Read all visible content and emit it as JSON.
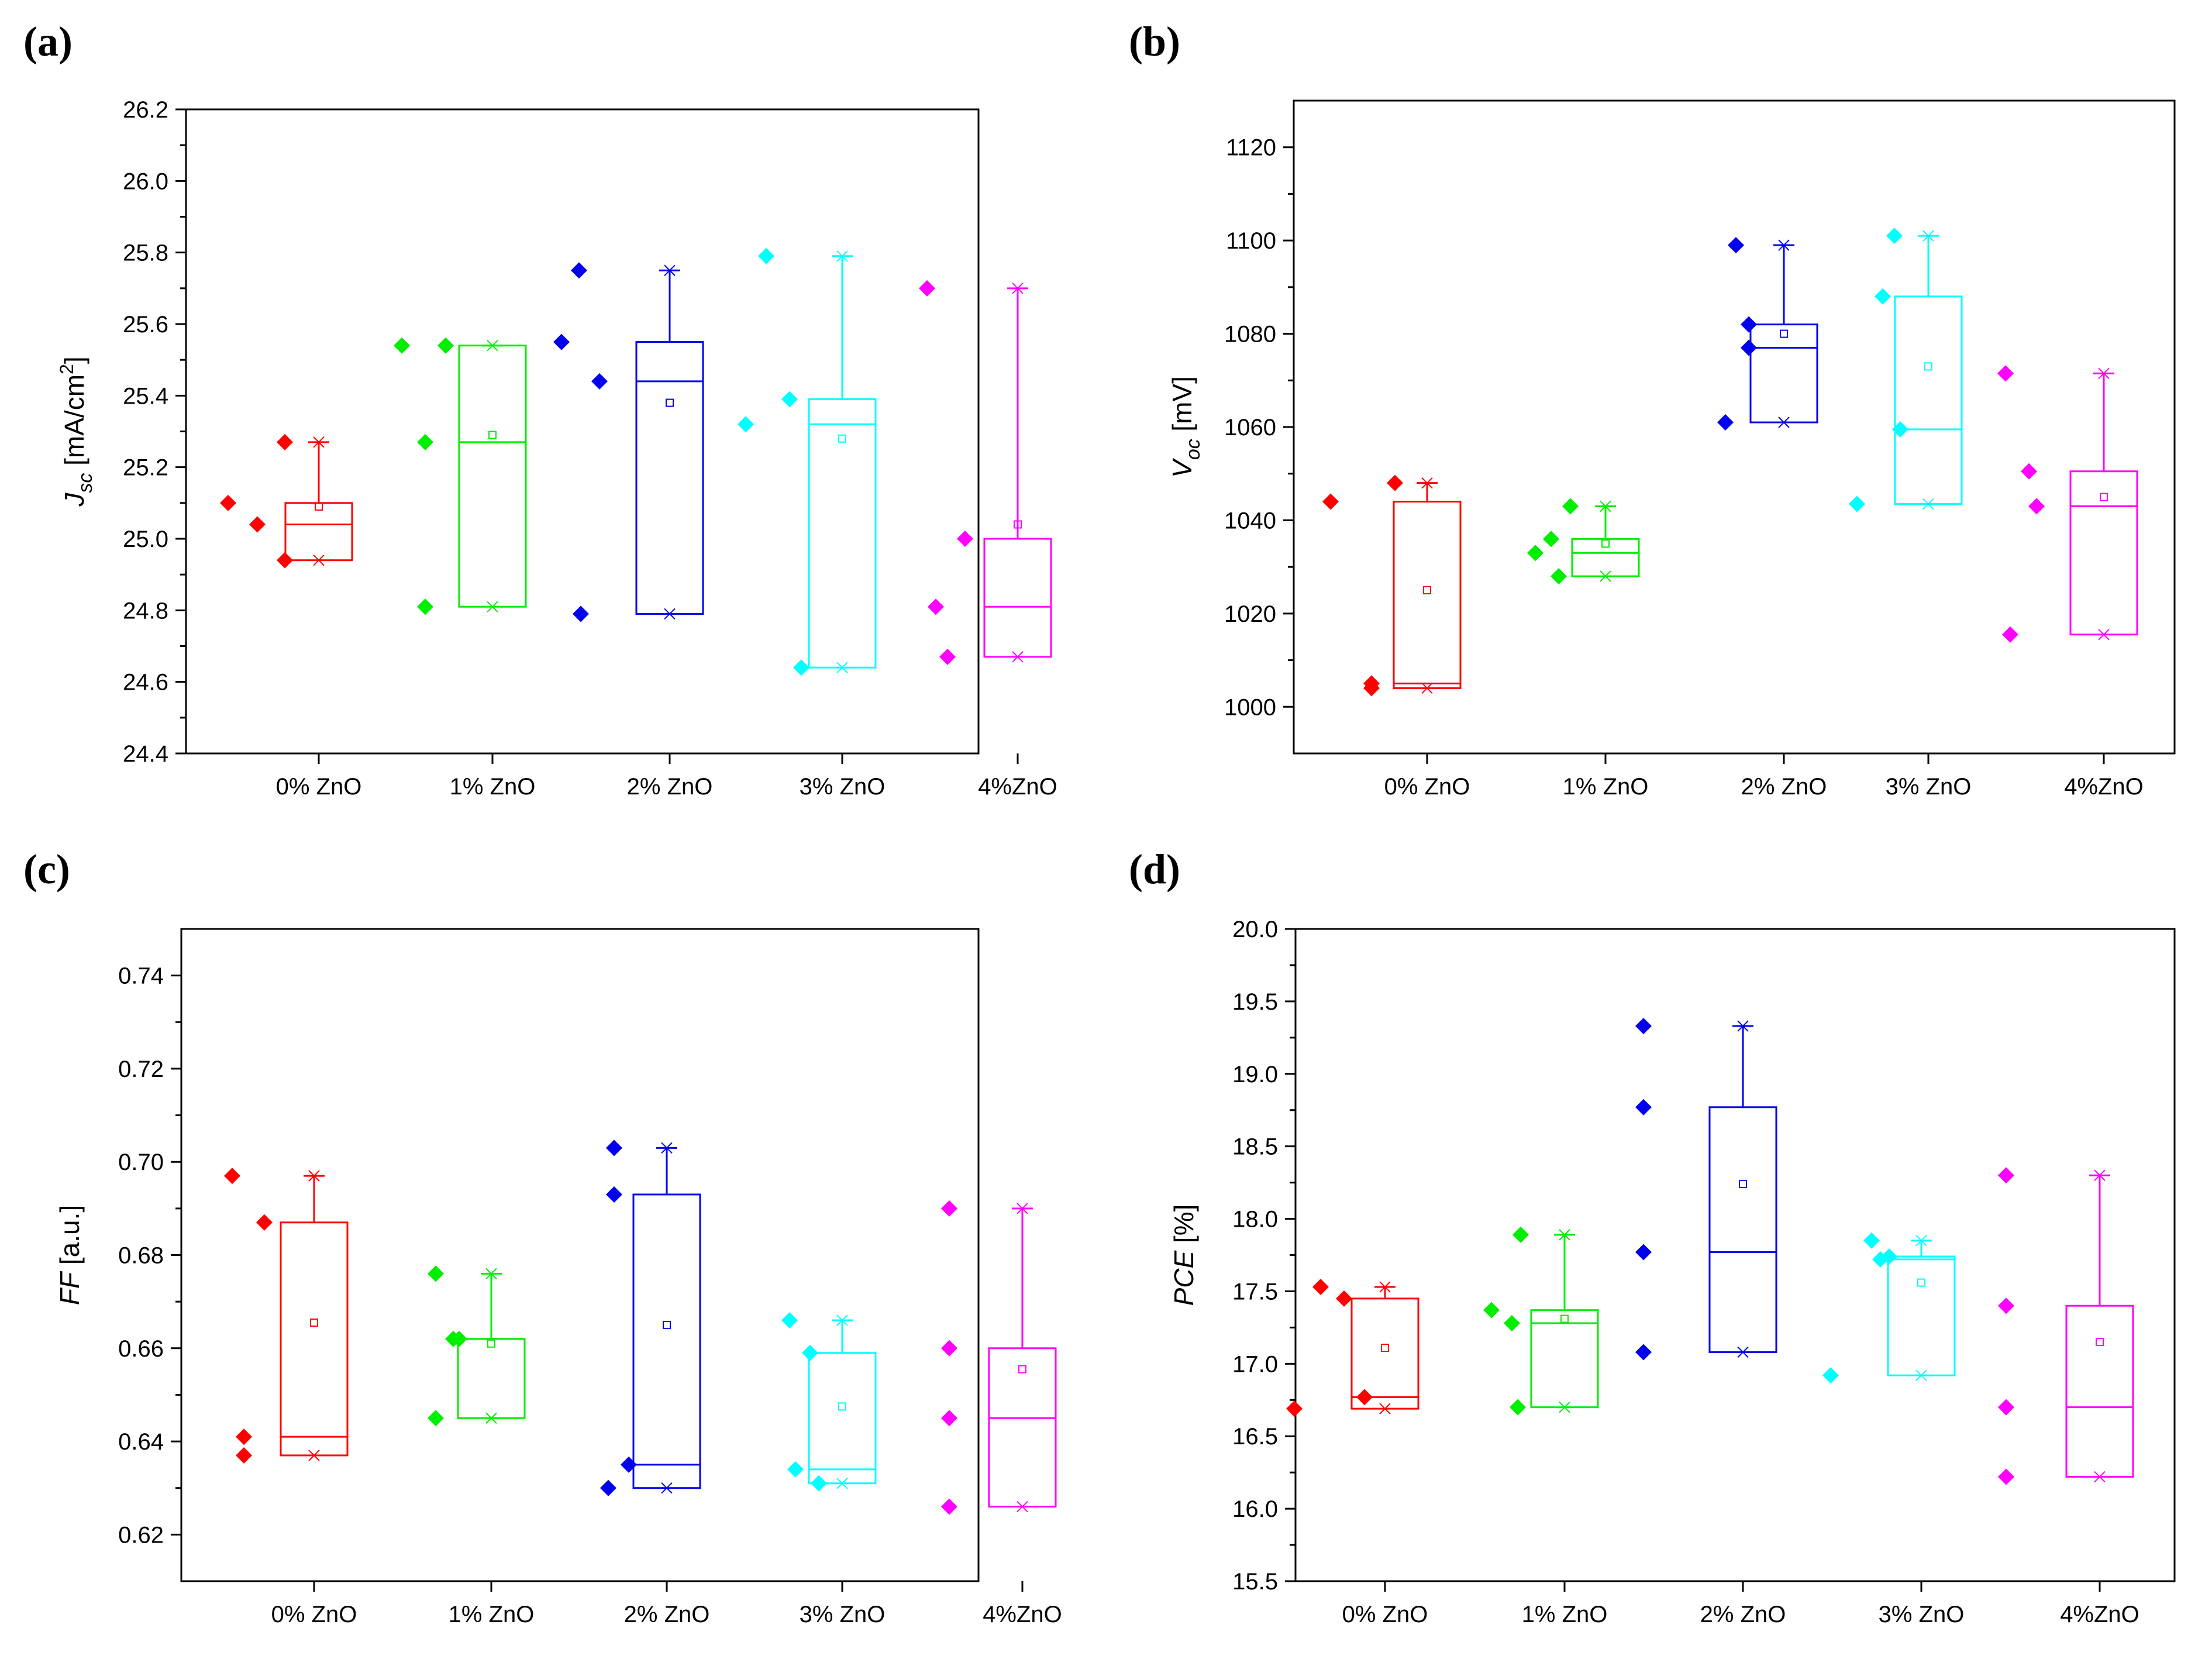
{
  "chart_data": [
    {
      "panel": "(a)",
      "type": "box",
      "ylabel_main": "J",
      "ylabel_sub": "sc",
      "ylabel_unit": "[mA/cm",
      "ylabel_sup": "2",
      "ylabel_close": "]",
      "ylim": [
        24.4,
        26.2
      ],
      "yticks": [
        "24.4",
        "24.6",
        "24.8",
        "25.0",
        "25.2",
        "25.4",
        "25.6",
        "25.8",
        "26.0",
        "26.2"
      ],
      "categories": [
        "0% ZnO",
        "1% ZnO",
        "2% ZnO",
        "3% ZnO",
        "4%ZnO"
      ],
      "groups": [
        {
          "points": [
            25.1,
            25.27,
            25.04,
            24.94
          ],
          "q1": 24.94,
          "median": 25.04,
          "q3": 25.1,
          "min": 24.94,
          "max": 25.27,
          "mean": 25.09
        },
        {
          "points": [
            25.54,
            25.54,
            25.27,
            24.81
          ],
          "q1": 24.81,
          "median": 25.27,
          "q3": 25.54,
          "min": 24.81,
          "max": 25.54,
          "mean": 25.29
        },
        {
          "points": [
            25.75,
            25.55,
            25.44,
            24.79
          ],
          "q1": 24.79,
          "median": 25.44,
          "q3": 25.55,
          "min": 24.79,
          "max": 25.75,
          "mean": 25.38
        },
        {
          "points": [
            25.79,
            25.39,
            25.32,
            24.64
          ],
          "q1": 24.64,
          "median": 25.32,
          "q3": 25.39,
          "min": 24.64,
          "max": 25.79,
          "mean": 25.28
        },
        {
          "points": [
            25.7,
            25.0,
            24.81,
            24.67
          ],
          "q1": 24.67,
          "median": 24.81,
          "q3": 25.0,
          "min": 24.67,
          "max": 25.7,
          "mean": 25.04
        }
      ]
    },
    {
      "panel": "(b)",
      "type": "box",
      "ylabel_main": "V",
      "ylabel_sub": "oc",
      "ylabel_unit": "[mV]",
      "ylim": [
        990,
        1130
      ],
      "yticks": [
        "1000",
        "1020",
        "1040",
        "1060",
        "1080",
        "1100",
        "1120"
      ],
      "categories": [
        "0% ZnO",
        "1% ZnO",
        "2% ZnO",
        "3% ZnO",
        "4%ZnO"
      ],
      "groups": [
        {
          "points": [
            1044,
            1048,
            1004,
            1005
          ],
          "q1": 1004,
          "median": 1005,
          "q3": 1044,
          "min": 1004,
          "max": 1048,
          "mean": 1025
        },
        {
          "points": [
            1036,
            1043,
            1028,
            1033
          ],
          "q1": 1028,
          "median": 1033,
          "q3": 1036,
          "min": 1028,
          "max": 1043,
          "mean": 1035
        },
        {
          "points": [
            1099,
            1082,
            1077,
            1061
          ],
          "q1": 1061,
          "median": 1077,
          "q3": 1082,
          "min": 1061,
          "max": 1099,
          "mean": 1080
        },
        {
          "points": [
            1101,
            1088,
            1059.5,
            1043.5
          ],
          "q1": 1043.5,
          "median": 1059.5,
          "q3": 1088,
          "min": 1043.5,
          "max": 1101,
          "mean": 1073
        },
        {
          "points": [
            1071.5,
            1050.5,
            1043,
            1015.5
          ],
          "q1": 1015.5,
          "median": 1043,
          "q3": 1050.5,
          "min": 1015.5,
          "max": 1071.5,
          "mean": 1045
        }
      ]
    },
    {
      "panel": "(c)",
      "type": "box",
      "ylabel_main": "FF",
      "ylabel_unit": "[a.u.]",
      "ylim": [
        0.61,
        0.75
      ],
      "yticks": [
        "0.62",
        "0.64",
        "0.66",
        "0.68",
        "0.70",
        "0.72",
        "0.74"
      ],
      "categories": [
        "0% ZnO",
        "1% ZnO",
        "2% ZnO",
        "3% ZnO",
        "4%ZnO"
      ],
      "groups": [
        {
          "points": [
            0.697,
            0.687,
            0.641,
            0.637
          ],
          "q1": 0.637,
          "median": 0.641,
          "q3": 0.687,
          "min": 0.637,
          "max": 0.697,
          "mean": 0.6655
        },
        {
          "points": [
            0.676,
            0.662,
            0.662,
            0.645
          ],
          "q1": 0.645,
          "median": 0.662,
          "q3": 0.662,
          "min": 0.645,
          "max": 0.676,
          "mean": 0.661
        },
        {
          "points": [
            0.703,
            0.693,
            0.635,
            0.63
          ],
          "q1": 0.63,
          "median": 0.635,
          "q3": 0.693,
          "min": 0.63,
          "max": 0.703,
          "mean": 0.665
        },
        {
          "points": [
            0.666,
            0.659,
            0.634,
            0.631
          ],
          "q1": 0.631,
          "median": 0.634,
          "q3": 0.659,
          "min": 0.631,
          "max": 0.666,
          "mean": 0.6475
        },
        {
          "points": [
            0.69,
            0.66,
            0.645,
            0.626
          ],
          "q1": 0.626,
          "median": 0.645,
          "q3": 0.66,
          "min": 0.626,
          "max": 0.69,
          "mean": 0.6555
        }
      ]
    },
    {
      "panel": "(d)",
      "type": "box",
      "ylabel_main": "PCE",
      "ylabel_unit": "[%]",
      "ylim": [
        15.5,
        20.0
      ],
      "yticks": [
        "15.5",
        "16.0",
        "16.5",
        "17.0",
        "17.5",
        "18.0",
        "18.5",
        "19.0",
        "19.5",
        "20.0"
      ],
      "categories": [
        "0% ZnO",
        "1% ZnO",
        "2% ZnO",
        "3% ZnO",
        "4%ZnO"
      ],
      "groups": [
        {
          "points": [
            16.69,
            16.77,
            17.45,
            17.53
          ],
          "q1": 16.69,
          "median": 16.77,
          "q3": 17.45,
          "min": 16.69,
          "max": 17.53,
          "mean": 17.11
        },
        {
          "points": [
            17.28,
            16.7,
            17.89,
            17.37
          ],
          "q1": 16.7,
          "median": 17.28,
          "q3": 17.37,
          "min": 16.7,
          "max": 17.89,
          "mean": 17.31
        },
        {
          "points": [
            19.33,
            18.77,
            17.77,
            17.08
          ],
          "q1": 17.08,
          "median": 17.77,
          "q3": 18.77,
          "min": 17.08,
          "max": 19.33,
          "mean": 18.24
        },
        {
          "points": [
            17.72,
            17.85,
            17.74,
            16.92
          ],
          "q1": 16.92,
          "median": 17.72,
          "q3": 17.74,
          "min": 16.92,
          "max": 17.85,
          "mean": 17.56
        },
        {
          "points": [
            18.3,
            17.4,
            16.7,
            16.22
          ],
          "q1": 16.22,
          "median": 16.7,
          "q3": 17.4,
          "min": 16.22,
          "max": 18.3,
          "mean": 17.15
        }
      ]
    }
  ],
  "colors": [
    "#ff0000",
    "#00ee00",
    "#0000ee",
    "#00ffff",
    "#ff00ff"
  ]
}
